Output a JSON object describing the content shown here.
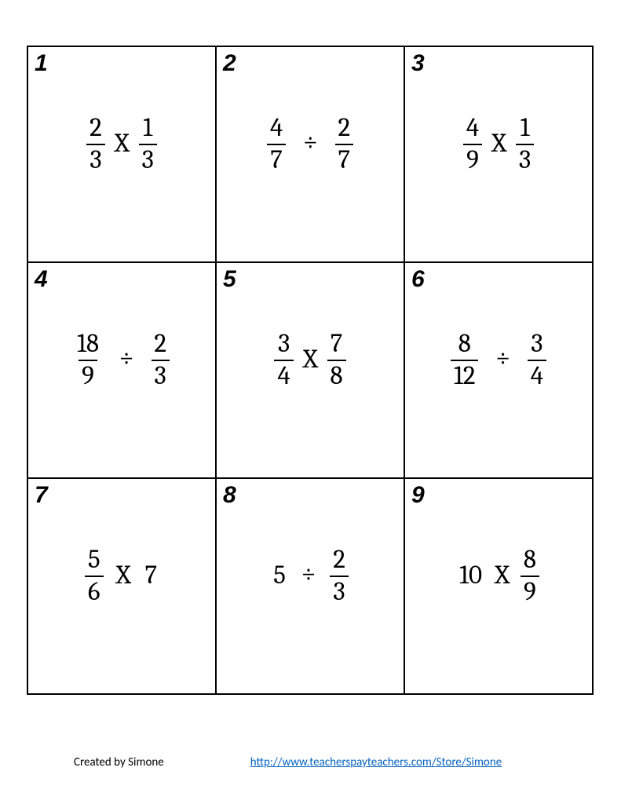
{
  "grid": {
    "border_color": "#000000",
    "cell_number_font": "Impact italic",
    "cell_number_fontsize": 30,
    "expr_fontsize": 33,
    "cells": [
      {
        "n": "1",
        "left": {
          "type": "frac",
          "num": "2",
          "den": "3"
        },
        "op": "X",
        "op_class": "mult",
        "right": {
          "type": "frac",
          "num": "1",
          "den": "3"
        }
      },
      {
        "n": "2",
        "left": {
          "type": "frac",
          "num": "4",
          "den": "7"
        },
        "op": "÷",
        "op_class": "div div-wide",
        "right": {
          "type": "frac",
          "num": "2",
          "den": "7"
        }
      },
      {
        "n": "3",
        "left": {
          "type": "frac",
          "num": "4",
          "den": "9"
        },
        "op": "X",
        "op_class": "mult",
        "right": {
          "type": "frac",
          "num": "1",
          "den": "3"
        }
      },
      {
        "n": "4",
        "left": {
          "type": "frac",
          "num": "18",
          "den": "9"
        },
        "op": "÷",
        "op_class": "div div-wide",
        "right": {
          "type": "frac",
          "num": "2",
          "den": "3"
        }
      },
      {
        "n": "5",
        "left": {
          "type": "frac",
          "num": "3",
          "den": "4"
        },
        "op": "X",
        "op_class": "mult",
        "right": {
          "type": "frac",
          "num": "7",
          "den": "8"
        }
      },
      {
        "n": "6",
        "left": {
          "type": "frac",
          "num": "8",
          "den": "12"
        },
        "op": "÷",
        "op_class": "div div-wide",
        "right": {
          "type": "frac",
          "num": "3",
          "den": "4"
        }
      },
      {
        "n": "7",
        "left": {
          "type": "frac",
          "num": "5",
          "den": "6"
        },
        "op": "X",
        "op_class": "mult",
        "right": {
          "type": "whole",
          "val": "7"
        }
      },
      {
        "n": "8",
        "left": {
          "type": "whole",
          "val": "5"
        },
        "op": "÷",
        "op_class": "div",
        "right": {
          "type": "frac",
          "num": "2",
          "den": "3"
        }
      },
      {
        "n": "9",
        "left": {
          "type": "whole",
          "val": "10"
        },
        "op": "X",
        "op_class": "mult",
        "right": {
          "type": "frac",
          "num": "8",
          "den": "9"
        }
      }
    ]
  },
  "footer": {
    "credit": "Created by Simone",
    "link": "http://www.teacherspayteachers.com/Store/Simone",
    "link_color": "#0563c1"
  }
}
